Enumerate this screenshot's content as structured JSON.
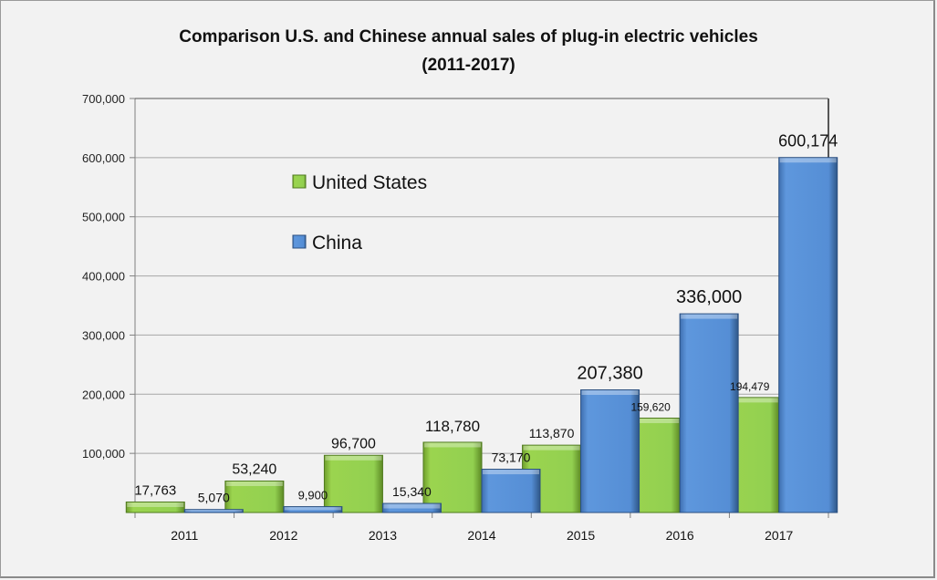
{
  "chart_data": {
    "type": "bar",
    "title": "Comparison  U.S. and Chinese annual sales of plug-in electric vehicles",
    "subtitle": "(2011-2017)",
    "xlabel": "",
    "ylabel": "",
    "categories": [
      "2011",
      "2012",
      "2013",
      "2014",
      "2015",
      "2016",
      "2017"
    ],
    "series": [
      {
        "name": "United States",
        "color": "#92d050",
        "values": [
          17763,
          53240,
          96700,
          118780,
          113870,
          159620,
          194479
        ],
        "labels": [
          "17,763",
          "53,240",
          "96,700",
          "118,780",
          "113,870",
          "159,620",
          "194,479"
        ]
      },
      {
        "name": "China",
        "color": "#558ed5",
        "values": [
          5070,
          9900,
          15340,
          73170,
          207380,
          336000,
          600174
        ],
        "labels": [
          "5,070",
          "9,900",
          "15,340",
          "73,170",
          "207,380",
          "336,000",
          "600,174"
        ]
      }
    ],
    "ylim": [
      0,
      700000
    ],
    "yticks": [
      100000,
      200000,
      300000,
      400000,
      500000,
      600000,
      700000
    ],
    "ytick_labels": [
      "100,000",
      "200,000",
      "300,000",
      "400,000",
      "500,000",
      "600,000",
      "700,000"
    ],
    "grid": true,
    "legend": {
      "placement": "inside-top-left",
      "entries": [
        "United States",
        "China"
      ]
    }
  }
}
